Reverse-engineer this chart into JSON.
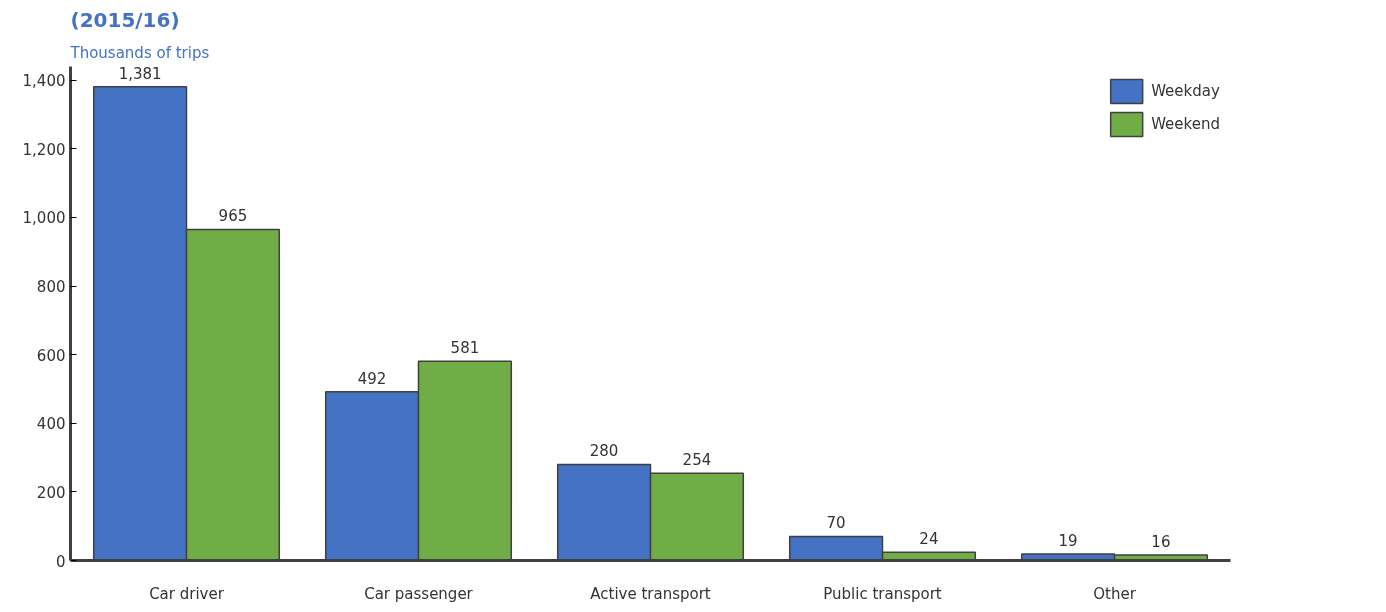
{
  "chart_data": {
    "type": "bar",
    "title": "(2015/16)",
    "subtitle": "Thousands of trips",
    "categories": [
      "Car driver",
      "Car passenger",
      "Active transport",
      "Public transport",
      "Other"
    ],
    "series": [
      {
        "name": "Weekday",
        "color": "#4472c4",
        "values": [
          1381,
          492,
          280,
          70,
          19
        ],
        "value_labels": [
          "1,381",
          "492",
          "280",
          "70",
          "19"
        ]
      },
      {
        "name": "Weekend",
        "color": "#70ad47",
        "values": [
          965,
          581,
          254,
          24,
          16
        ],
        "value_labels": [
          "965",
          "581",
          "254",
          "24",
          "16"
        ]
      }
    ],
    "ylim": [
      0,
      1440
    ],
    "yticks": [
      0,
      {
        "value": 200,
        "label": "200"
      },
      {
        "value": 400,
        "label": "400"
      },
      {
        "value": 600,
        "label": "600"
      },
      {
        "value": 800,
        "label": "800"
      },
      {
        "value": 1000,
        "label": "1,000"
      },
      {
        "value": 1200,
        "label": "1,200"
      },
      {
        "value": 1400,
        "label": "1,400"
      }
    ],
    "legend": "top right",
    "grid": false
  }
}
